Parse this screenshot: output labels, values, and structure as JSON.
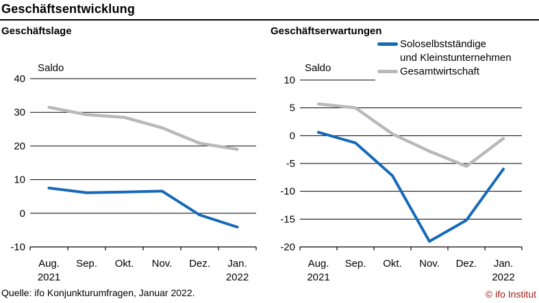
{
  "header": {
    "title": "Geschäftsentwicklung"
  },
  "footer": {
    "source": "Quelle: ifo Konjunkturumfragen, Januar 2022.",
    "copyright": "© ifo Institut"
  },
  "colors": {
    "series_blue": "#1569b9",
    "series_gray": "#b9b9b9",
    "copyright_red": "#9b1b10",
    "axis_black": "#000000"
  },
  "legend": {
    "position": "top-right",
    "entries": [
      {
        "name": "Soloselbstständige und Kleinstunternehmen",
        "lines": [
          "Soloselbstständige",
          "und Kleinstunternehmen"
        ],
        "color": "#1569b9"
      },
      {
        "name": "Gesamtwirtschaft",
        "lines": [
          "Gesamtwirtschaft"
        ],
        "color": "#b9b9b9"
      }
    ]
  },
  "chart_data": [
    {
      "type": "line",
      "title": "Geschäftslage",
      "ylabel": "Saldo",
      "categories": [
        "Aug.",
        "Sep.",
        "Okt.",
        "Nov.",
        "Dez.",
        "Jan."
      ],
      "year_labels": [
        {
          "index": 0,
          "label": "2021"
        },
        {
          "index": 5,
          "label": "2022"
        }
      ],
      "ylim": [
        -10,
        40
      ],
      "yticks": [
        40,
        30,
        20,
        10,
        0,
        -10
      ],
      "grid": true,
      "series": [
        {
          "name": "Soloselbstständige und Kleinstunternehmen",
          "color": "#1569b9",
          "values": [
            7.5,
            6.1,
            6.3,
            6.6,
            -0.5,
            -4.1
          ]
        },
        {
          "name": "Gesamtwirtschaft",
          "color": "#b9b9b9",
          "values": [
            31.5,
            29.3,
            28.5,
            25.4,
            20.8,
            19.0
          ]
        }
      ]
    },
    {
      "type": "line",
      "title": "Geschäftserwartungen",
      "ylabel": "Saldo",
      "categories": [
        "Aug.",
        "Sep.",
        "Okt.",
        "Nov.",
        "Dez.",
        "Jan."
      ],
      "year_labels": [
        {
          "index": 0,
          "label": "2021"
        },
        {
          "index": 5,
          "label": "2022"
        }
      ],
      "ylim": [
        -20,
        10
      ],
      "yticks": [
        10,
        5,
        0,
        -5,
        -10,
        -15,
        -20
      ],
      "grid": true,
      "legend_position": "top-right",
      "series": [
        {
          "name": "Soloselbstständige und Kleinstunternehmen",
          "color": "#1569b9",
          "values": [
            0.6,
            -1.3,
            -7.2,
            -19.0,
            -15.2,
            -6.0
          ]
        },
        {
          "name": "Gesamtwirtschaft",
          "color": "#b9b9b9",
          "values": [
            5.7,
            5.0,
            0.3,
            -2.8,
            -5.5,
            -0.5
          ]
        }
      ]
    }
  ]
}
